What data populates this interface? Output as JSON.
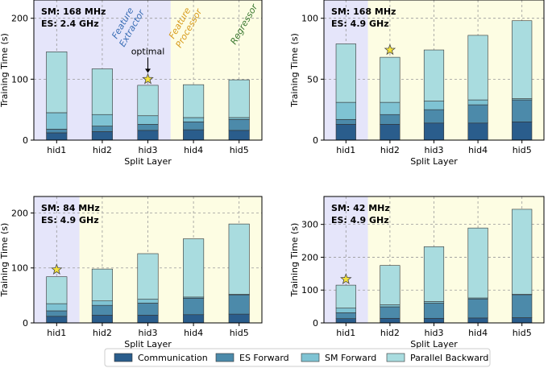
{
  "figure": {
    "colors": {
      "communication": "#2a5d8c",
      "es_forward": "#4c8aaa",
      "sm_forward": "#7fc3d3",
      "parallel_backward": "#a9dcdf",
      "feature_extractor_bg": "#e5e5fa",
      "feature_processor_bg": "#fdfde3",
      "regressor_bg": "#e6f0e3",
      "feature_extractor_text": "#3a6eb5",
      "feature_processor_text": "#d89c1e",
      "regressor_text": "#3d7a32",
      "star": "#f5e33a"
    },
    "legend": [
      "Communication",
      "ES Forward",
      "SM Forward",
      "Parallel Backward"
    ]
  },
  "chart_data": [
    {
      "type": "bar",
      "stacked": true,
      "info_lines": [
        "SM: 168 MHz",
        "ES: 2.4 GHz"
      ],
      "xlabel": "Split Layer",
      "ylabel": "Training Time (s)",
      "ylim": [
        0,
        230
      ],
      "yticks": [
        0,
        100,
        200
      ],
      "categories": [
        "hid1",
        "hid2",
        "hid3",
        "hid4",
        "hid5"
      ],
      "series": [
        {
          "name": "Communication",
          "values": [
            12,
            14,
            16,
            17,
            16
          ]
        },
        {
          "name": "ES Forward",
          "values": [
            6,
            9,
            10,
            13,
            18
          ]
        },
        {
          "name": "SM Forward",
          "values": [
            27,
            19,
            14,
            7,
            3
          ]
        },
        {
          "name": "Parallel Backward",
          "values": [
            100,
            75,
            50,
            54,
            62
          ]
        }
      ],
      "regions": {
        "feature_extractor_end": 2.5,
        "regressor_start": 4.5
      },
      "region_labels": [
        {
          "text": [
            "Feature",
            "Extractor"
          ],
          "key": "feature_extractor_text"
        },
        {
          "text": [
            "Feature",
            "Processor"
          ],
          "key": "feature_processor_text"
        },
        {
          "text": [
            "Regressor"
          ],
          "key": "regressor_text"
        }
      ],
      "star": {
        "category": "hid3",
        "value": 100
      },
      "annotation": "optimal"
    },
    {
      "type": "bar",
      "stacked": true,
      "info_lines": [
        "SM: 168 MHz",
        "ES: 4.9 GHz"
      ],
      "xlabel": "Split Layer",
      "ylabel": "Training Time (s)",
      "ylim": [
        0,
        115
      ],
      "yticks": [
        0,
        50,
        100
      ],
      "categories": [
        "hid1",
        "hid2",
        "hid3",
        "hid4",
        "hid5"
      ],
      "series": [
        {
          "name": "Communication",
          "values": [
            13,
            13,
            14,
            14,
            15
          ]
        },
        {
          "name": "ES Forward",
          "values": [
            4,
            8,
            11,
            15,
            18
          ]
        },
        {
          "name": "SM Forward",
          "values": [
            14,
            10,
            7,
            4,
            1
          ]
        },
        {
          "name": "Parallel Backward",
          "values": [
            48,
            37,
            42,
            53,
            64
          ]
        }
      ],
      "regions": {
        "feature_extractor_end": 0.5,
        "regressor_start": 4.5
      },
      "star": {
        "category": "hid2",
        "value": 74
      }
    },
    {
      "type": "bar",
      "stacked": true,
      "info_lines": [
        "SM: 84 MHz",
        "ES: 4.9 GHz"
      ],
      "xlabel": "Split Layer",
      "ylabel": "Training Time (s)",
      "ylim": [
        0,
        230
      ],
      "yticks": [
        0,
        100,
        200
      ],
      "categories": [
        "hid1",
        "hid2",
        "hid3",
        "hid4",
        "hid5"
      ],
      "series": [
        {
          "name": "Communication",
          "values": [
            12,
            14,
            14,
            15,
            16
          ]
        },
        {
          "name": "ES Forward",
          "values": [
            10,
            18,
            22,
            30,
            35
          ]
        },
        {
          "name": "SM Forward",
          "values": [
            13,
            8,
            7,
            2,
            1
          ]
        },
        {
          "name": "Parallel Backward",
          "values": [
            49,
            58,
            83,
            106,
            128
          ]
        }
      ],
      "regions": {
        "feature_extractor_end": 0.5,
        "regressor_start": 4.5
      },
      "star": {
        "category": "hid1",
        "value": 97
      }
    },
    {
      "type": "bar",
      "stacked": true,
      "info_lines": [
        "SM: 42 MHz",
        "ES: 4.9 GHz"
      ],
      "xlabel": "Split Layer",
      "ylabel": "Training Time (s)",
      "ylim": [
        0,
        385
      ],
      "yticks": [
        0,
        100,
        200,
        300
      ],
      "categories": [
        "hid1",
        "hid2",
        "hid3",
        "hid4",
        "hid5"
      ],
      "series": [
        {
          "name": "Communication",
          "values": [
            13,
            14,
            14,
            15,
            16
          ]
        },
        {
          "name": "ES Forward",
          "values": [
            18,
            35,
            46,
            58,
            70
          ]
        },
        {
          "name": "SM Forward",
          "values": [
            14,
            6,
            5,
            3,
            1
          ]
        },
        {
          "name": "Parallel Backward",
          "values": [
            70,
            120,
            167,
            213,
            259
          ]
        }
      ],
      "regions": {
        "feature_extractor_end": 0.5,
        "regressor_start": 4.5
      },
      "star": {
        "category": "hid1",
        "value": 133
      }
    }
  ]
}
